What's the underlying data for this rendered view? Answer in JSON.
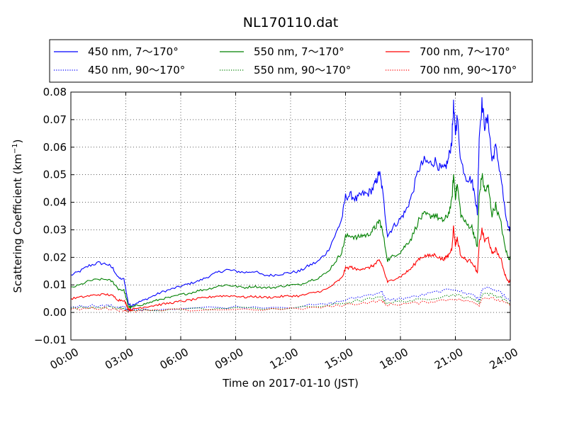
{
  "chart_data": {
    "type": "line",
    "title": "NL170110.dat",
    "xlabel": "Time on 2017-01-10 (JST)",
    "ylabel_main": "Scattering Coefficient (km",
    "ylabel_sup": "−1",
    "ylabel_end": ")",
    "xlim": [
      0,
      24
    ],
    "ylim": [
      -0.01,
      0.08
    ],
    "grid": true,
    "legend_position": "top",
    "x_ticks": [
      {
        "value": 0,
        "label": "00:00"
      },
      {
        "value": 3,
        "label": "03:00"
      },
      {
        "value": 6,
        "label": "06:00"
      },
      {
        "value": 9,
        "label": "09:00"
      },
      {
        "value": 12,
        "label": "12:00"
      },
      {
        "value": 15,
        "label": "15:00"
      },
      {
        "value": 18,
        "label": "18:00"
      },
      {
        "value": 21,
        "label": "21:00"
      },
      {
        "value": 24,
        "label": "24:00"
      }
    ],
    "y_ticks": [
      {
        "value": -0.01,
        "label": "−0.01"
      },
      {
        "value": 0.0,
        "label": "0.00"
      },
      {
        "value": 0.01,
        "label": "0.01"
      },
      {
        "value": 0.02,
        "label": "0.02"
      },
      {
        "value": 0.03,
        "label": "0.03"
      },
      {
        "value": 0.04,
        "label": "0.04"
      },
      {
        "value": 0.05,
        "label": "0.05"
      },
      {
        "value": 0.06,
        "label": "0.06"
      },
      {
        "value": 0.07,
        "label": "0.07"
      },
      {
        "value": 0.08,
        "label": "0.08"
      }
    ],
    "series": [
      {
        "name": "450 nm, 7～170°",
        "color": "#0000ff",
        "style": "solid",
        "x": [
          0,
          0.5,
          1,
          1.5,
          2,
          2.3,
          2.6,
          2.9,
          3.05,
          3.15,
          3.3,
          3.6,
          4,
          4.5,
          5,
          5.5,
          6,
          6.5,
          7,
          7.5,
          8,
          8.5,
          9,
          9.5,
          10,
          10.5,
          11,
          11.5,
          12,
          12.5,
          13,
          13.5,
          14,
          14.5,
          14.8,
          15,
          15.3,
          15.6,
          15.9,
          16.2,
          16.5,
          16.7,
          16.85,
          17,
          17.3,
          17.6,
          18,
          18.3,
          18.6,
          19,
          19.3,
          19.6,
          19.9,
          20.2,
          20.4,
          20.6,
          20.8,
          20.9,
          21.0,
          21.1,
          21.3,
          21.6,
          21.9,
          22.1,
          22.2,
          22.3,
          22.45,
          22.6,
          22.8,
          23.0,
          23.2,
          23.5,
          23.7,
          23.9,
          24
        ],
        "y": [
          0.0135,
          0.015,
          0.017,
          0.018,
          0.0175,
          0.016,
          0.0125,
          0.012,
          0.0065,
          0.003,
          0.0025,
          0.0035,
          0.0045,
          0.006,
          0.0075,
          0.0085,
          0.0095,
          0.0105,
          0.0115,
          0.013,
          0.0145,
          0.0155,
          0.015,
          0.0145,
          0.015,
          0.0135,
          0.0135,
          0.014,
          0.0145,
          0.015,
          0.017,
          0.0185,
          0.022,
          0.029,
          0.034,
          0.042,
          0.0425,
          0.041,
          0.043,
          0.043,
          0.045,
          0.048,
          0.051,
          0.045,
          0.028,
          0.031,
          0.034,
          0.037,
          0.042,
          0.052,
          0.055,
          0.054,
          0.055,
          0.052,
          0.052,
          0.055,
          0.062,
          0.075,
          0.065,
          0.071,
          0.055,
          0.049,
          0.048,
          0.041,
          0.036,
          0.064,
          0.076,
          0.068,
          0.07,
          0.055,
          0.06,
          0.049,
          0.037,
          0.03,
          0.0305
        ]
      },
      {
        "name": "450 nm, 90～170°",
        "color": "#0000ff",
        "style": "dotted",
        "x": [
          0,
          1,
          2,
          2.6,
          2.9,
          3.1,
          3.3,
          4,
          6,
          9,
          12,
          14,
          15,
          16,
          17,
          17.2,
          18,
          19,
          20,
          21,
          21.5,
          22,
          22.3,
          22.5,
          23,
          23.5,
          24
        ],
        "y": [
          0.002,
          0.0025,
          0.0025,
          0.002,
          0.002,
          0.0008,
          0.0008,
          0.001,
          0.0015,
          0.002,
          0.002,
          0.003,
          0.0045,
          0.006,
          0.0075,
          0.0045,
          0.005,
          0.006,
          0.0075,
          0.0085,
          0.007,
          0.0065,
          0.0045,
          0.009,
          0.0085,
          0.007,
          0.004
        ]
      },
      {
        "name": "550 nm, 7～170°",
        "color": "#008000",
        "style": "solid",
        "x": [
          0,
          0.5,
          1,
          1.5,
          2,
          2.3,
          2.6,
          2.9,
          3.05,
          3.15,
          3.3,
          3.6,
          4,
          4.5,
          5,
          5.5,
          6,
          6.5,
          7,
          7.5,
          8,
          8.5,
          9,
          9.5,
          10,
          10.5,
          11,
          11.5,
          12,
          12.5,
          13,
          13.5,
          14,
          14.5,
          14.8,
          15,
          15.3,
          15.6,
          15.9,
          16.2,
          16.5,
          16.7,
          16.85,
          17,
          17.3,
          17.6,
          18,
          18.3,
          18.6,
          19,
          19.3,
          19.6,
          19.9,
          20.2,
          20.4,
          20.6,
          20.8,
          20.9,
          21.0,
          21.1,
          21.3,
          21.6,
          21.9,
          22.1,
          22.2,
          22.3,
          22.45,
          22.6,
          22.8,
          23.0,
          23.2,
          23.5,
          23.7,
          23.9,
          24
        ],
        "y": [
          0.009,
          0.01,
          0.0115,
          0.012,
          0.012,
          0.011,
          0.0085,
          0.008,
          0.0045,
          0.002,
          0.0018,
          0.0025,
          0.003,
          0.004,
          0.005,
          0.0055,
          0.0065,
          0.007,
          0.008,
          0.0085,
          0.0095,
          0.01,
          0.0095,
          0.009,
          0.0095,
          0.009,
          0.009,
          0.0095,
          0.01,
          0.01,
          0.0115,
          0.0125,
          0.0145,
          0.019,
          0.022,
          0.0275,
          0.028,
          0.027,
          0.028,
          0.028,
          0.03,
          0.0315,
          0.0335,
          0.03,
          0.019,
          0.0205,
          0.022,
          0.0245,
          0.027,
          0.0335,
          0.0355,
          0.035,
          0.0355,
          0.0335,
          0.0335,
          0.0355,
          0.04,
          0.05,
          0.042,
          0.0465,
          0.0355,
          0.032,
          0.031,
          0.0265,
          0.0235,
          0.042,
          0.05,
          0.044,
          0.0455,
          0.0355,
          0.039,
          0.032,
          0.024,
          0.0195,
          0.02
        ]
      },
      {
        "name": "550 nm, 90～170°",
        "color": "#008000",
        "style": "dotted",
        "x": [
          0,
          1,
          2,
          2.6,
          2.9,
          3.1,
          3.3,
          4,
          6,
          9,
          12,
          14,
          15,
          16,
          17,
          17.2,
          18,
          19,
          20,
          21,
          21.5,
          22,
          22.3,
          22.5,
          23,
          23.5,
          24
        ],
        "y": [
          0.0015,
          0.002,
          0.002,
          0.0015,
          0.0015,
          0.0006,
          0.0006,
          0.0008,
          0.0012,
          0.0015,
          0.0015,
          0.0025,
          0.0035,
          0.0045,
          0.0055,
          0.0035,
          0.004,
          0.0045,
          0.0055,
          0.0065,
          0.0055,
          0.005,
          0.0035,
          0.007,
          0.0065,
          0.0055,
          0.003
        ]
      },
      {
        "name": "700 nm, 7～170°",
        "color": "#ff0000",
        "style": "solid",
        "x": [
          0,
          0.5,
          1,
          1.5,
          2,
          2.3,
          2.6,
          2.9,
          3.05,
          3.15,
          3.3,
          3.6,
          4,
          4.5,
          5,
          5.5,
          6,
          6.5,
          7,
          7.5,
          8,
          8.5,
          9,
          9.5,
          10,
          10.5,
          11,
          11.5,
          12,
          12.5,
          13,
          13.5,
          14,
          14.5,
          14.8,
          15,
          15.3,
          15.6,
          15.9,
          16.2,
          16.5,
          16.7,
          16.85,
          17,
          17.3,
          17.6,
          18,
          18.3,
          18.6,
          19,
          19.3,
          19.6,
          19.9,
          20.2,
          20.4,
          20.6,
          20.8,
          20.9,
          21.0,
          21.1,
          21.3,
          21.6,
          21.9,
          22.1,
          22.2,
          22.3,
          22.45,
          22.6,
          22.8,
          23.0,
          23.2,
          23.5,
          23.7,
          23.9,
          24
        ],
        "y": [
          0.005,
          0.0055,
          0.006,
          0.0065,
          0.0065,
          0.006,
          0.0045,
          0.0045,
          0.0025,
          0.0012,
          0.001,
          0.0015,
          0.002,
          0.0025,
          0.003,
          0.0035,
          0.004,
          0.0045,
          0.005,
          0.0055,
          0.006,
          0.006,
          0.006,
          0.0055,
          0.0058,
          0.0055,
          0.0055,
          0.0058,
          0.006,
          0.006,
          0.0068,
          0.0075,
          0.0085,
          0.011,
          0.0125,
          0.016,
          0.0165,
          0.0155,
          0.016,
          0.016,
          0.017,
          0.018,
          0.019,
          0.017,
          0.011,
          0.012,
          0.013,
          0.0145,
          0.016,
          0.0195,
          0.0205,
          0.0205,
          0.021,
          0.0195,
          0.0195,
          0.0205,
          0.023,
          0.031,
          0.0245,
          0.027,
          0.0205,
          0.019,
          0.0185,
          0.016,
          0.014,
          0.0245,
          0.03,
          0.026,
          0.027,
          0.021,
          0.023,
          0.019,
          0.014,
          0.011,
          0.0115
        ]
      },
      {
        "name": "700 nm, 90～170°",
        "color": "#ff0000",
        "style": "dotted",
        "x": [
          0,
          1,
          2,
          2.6,
          2.9,
          3.1,
          3.3,
          4,
          6,
          9,
          12,
          14,
          15,
          16,
          17,
          17.2,
          18,
          19,
          20,
          21,
          21.5,
          22,
          22.3,
          22.5,
          23,
          23.5,
          24
        ],
        "y": [
          0.001,
          0.0015,
          0.0015,
          0.001,
          0.001,
          0.0004,
          0.0004,
          0.0006,
          0.0009,
          0.0011,
          0.0012,
          0.002,
          0.0028,
          0.0035,
          0.0042,
          0.0028,
          0.003,
          0.0035,
          0.0042,
          0.005,
          0.0042,
          0.0038,
          0.0028,
          0.0055,
          0.005,
          0.0042,
          0.0025
        ]
      }
    ]
  }
}
